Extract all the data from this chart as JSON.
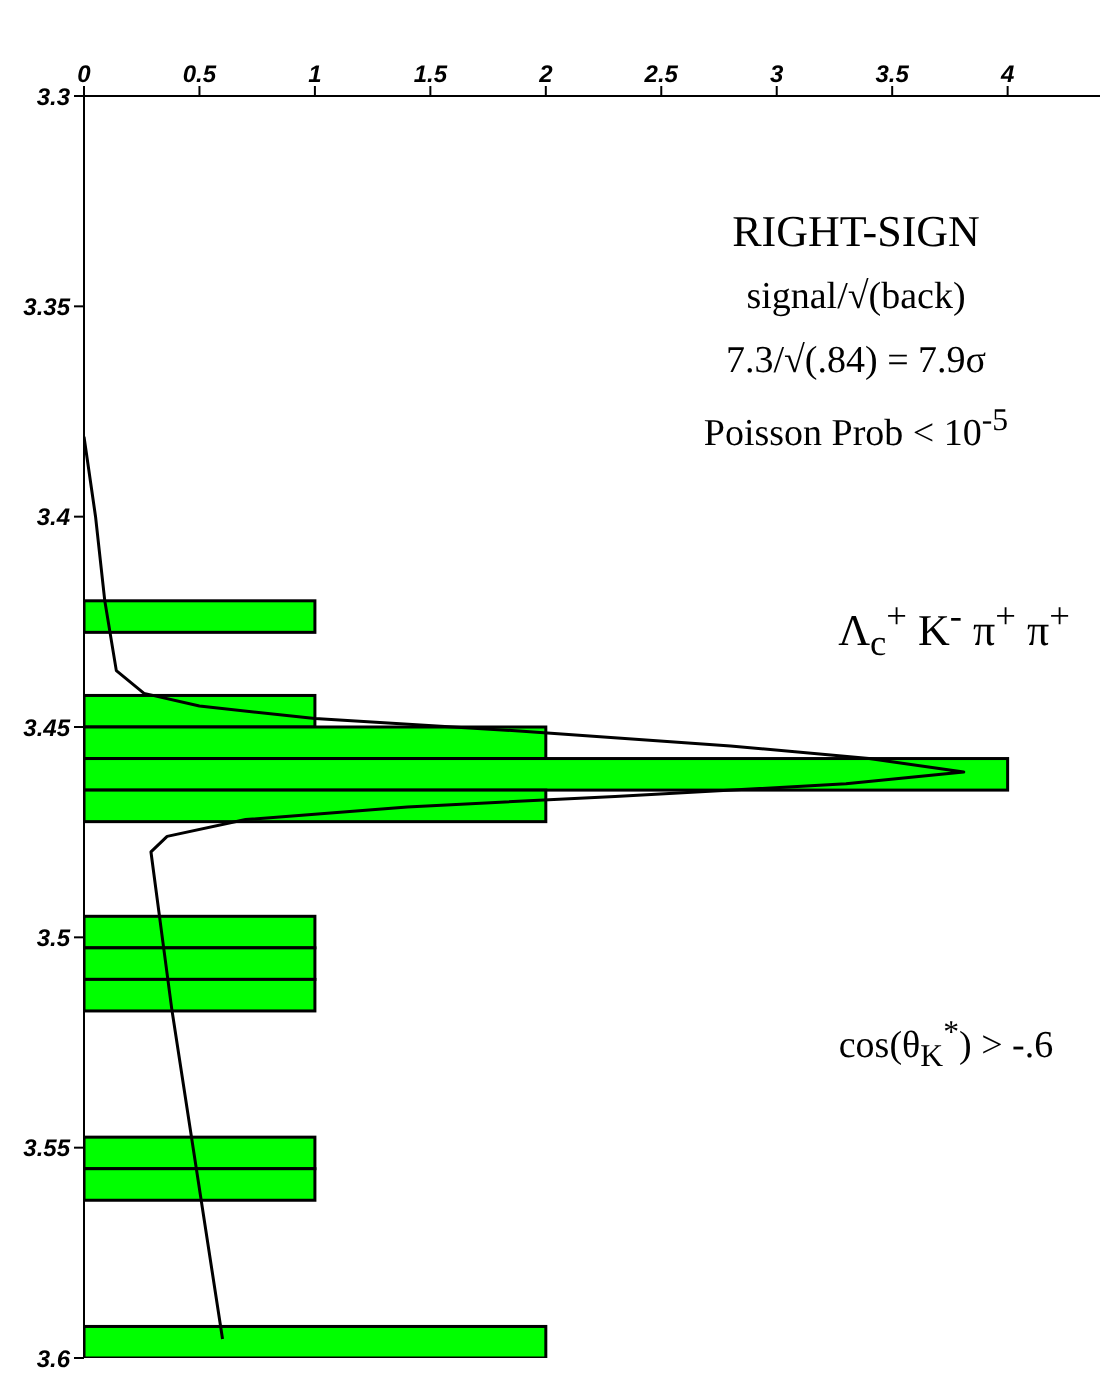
{
  "chart_data": {
    "type": "histogram",
    "orientation": "horizontal",
    "title": "Λ$_{c}$$^{+}$ K$^{-}$ π$^{+}$ π$^{+}$",
    "annotations": [
      "cos(θ$_{K}$$^{*}$) > -.6",
      "RIGHT-SIGN",
      "signal/√(back)",
      "7.3/√(.84) = 7.9σ",
      "Poisson Prob < 10$^{-5}$"
    ],
    "bins": [
      3.3,
      3.3075,
      3.315,
      3.3225,
      3.33,
      3.3375,
      3.345,
      3.3525,
      3.36,
      3.3675,
      3.375,
      3.3825,
      3.39,
      3.3975,
      3.405,
      3.4125,
      3.42,
      3.4275,
      3.435,
      3.4425,
      3.45,
      3.4575,
      3.465,
      3.4725,
      3.48,
      3.4875,
      3.495,
      3.5025,
      3.51,
      3.5175,
      3.525,
      3.5325,
      3.54,
      3.5475,
      3.555,
      3.5625,
      3.57,
      3.5775,
      3.585,
      3.5925,
      3.6
    ],
    "values": [
      0,
      0,
      0,
      0,
      0,
      0,
      0,
      0,
      0,
      0,
      0,
      0,
      0,
      0,
      0,
      0,
      1,
      0,
      0,
      1,
      2,
      4,
      2,
      0,
      0,
      0,
      1,
      1,
      1,
      0,
      0,
      0,
      0,
      1,
      1,
      0,
      0,
      0,
      0,
      2
    ],
    "color": "#00ff00",
    "series": [
      {
        "type": "line",
        "color": "#000000",
        "x": [
          3.381,
          3.4,
          3.42,
          3.4366,
          3.442,
          3.445,
          3.448,
          3.451,
          3.4545,
          3.4575,
          3.4607,
          3.4635,
          3.4665,
          3.469,
          3.472,
          3.476,
          3.4797,
          3.517,
          3.5955
        ],
        "values": [
          0,
          0.05,
          0.09,
          0.14,
          0.26,
          0.5,
          1.0,
          1.9,
          2.8,
          3.4,
          3.81,
          3.3,
          2.3,
          1.4,
          0.7,
          0.36,
          0.29,
          0.38,
          0.6
        ]
      }
    ],
    "ylim": [
      3.6,
      3.3
    ],
    "yticks": [
      3.3,
      3.35,
      3.4,
      3.45,
      3.5,
      3.55,
      3.6
    ],
    "xlim": [
      0,
      4.4
    ],
    "xticks": [
      0,
      0.5,
      1,
      1.5,
      2,
      2.5,
      3,
      3.5,
      4
    ],
    "grid": false,
    "legend": false,
    "marker": "none",
    "line_style": "solid"
  }
}
